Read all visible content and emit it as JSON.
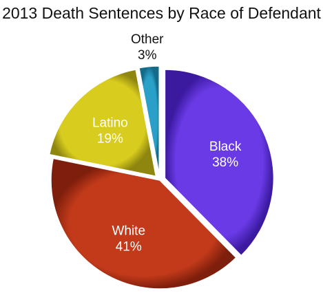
{
  "chart_data": {
    "type": "pie",
    "title": "2013 Death Sentences by Race of Defendant",
    "slices": [
      {
        "name": "Black",
        "label": "Black",
        "pct_label": "38%",
        "value": 38,
        "color": "#6a3ae6",
        "dark": "#3b1aa0",
        "text_color": "#ffffff",
        "exploded": true
      },
      {
        "name": "White",
        "label": "White",
        "pct_label": "41%",
        "value": 41,
        "color": "#c23a1a",
        "dark": "#7e1e0c",
        "text_color": "#ffffff",
        "exploded": false
      },
      {
        "name": "Latino",
        "label": "Latino",
        "pct_label": "19%",
        "value": 19,
        "color": "#d8cc1e",
        "dark": "#8f8610",
        "text_color": "#ffffff",
        "exploded": true
      },
      {
        "name": "Other",
        "label": "Other",
        "pct_label": "3%",
        "value": 3,
        "color": "#2aa0c8",
        "dark": "#156c8a",
        "text_color": "#111111",
        "exploded": true
      }
    ],
    "start_angle_deg": 0,
    "direction": "clockwise",
    "legend": "none"
  }
}
